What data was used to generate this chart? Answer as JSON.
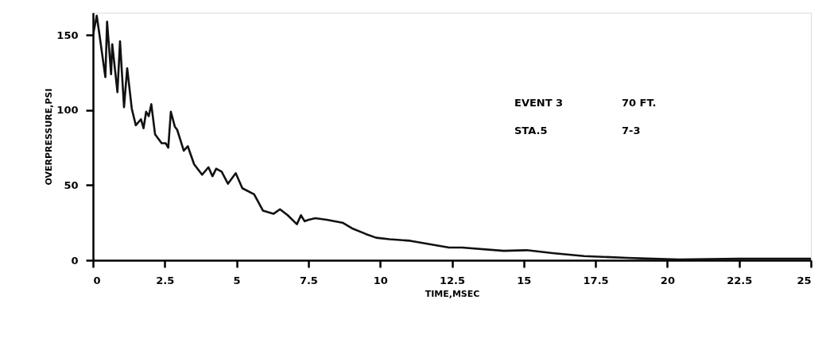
{
  "chart_data": {
    "type": "line",
    "xlabel": "TIME,MSEC",
    "ylabel": "OVERPRESSURE,PSI",
    "annotations": [
      "EVENT 3",
      "70 FT.",
      "STA.5",
      "7-3"
    ],
    "series": [
      {
        "color": "#111111",
        "x": [
          0,
          0.13,
          0.22,
          0.43,
          0.49,
          0.63,
          0.67,
          0.85,
          0.94,
          1.08,
          1.19,
          1.35,
          1.49,
          1.67,
          1.76,
          1.85,
          1.94,
          2.03,
          2.16,
          2.39,
          2.53,
          2.62,
          2.71,
          2.85,
          2.93,
          3.16,
          3.3,
          3.52,
          3.8,
          4.02,
          4.16,
          4.29,
          4.48,
          4.7,
          4.97,
          5.2,
          5.61,
          5.92,
          6.29,
          6.51,
          6.78,
          7.1,
          7.24,
          7.37,
          7.51,
          7.74,
          8.14,
          8.69,
          9.05,
          9.5,
          9.86,
          10.32,
          11.04,
          12.4,
          12.85,
          14.3,
          15.1,
          16.0,
          17.1,
          18.6,
          19.5,
          20.4,
          22.5,
          25
        ],
        "values": [
          150,
          163,
          151,
          122,
          159,
          124,
          144,
          112,
          146,
          102,
          128,
          101,
          90,
          94,
          88,
          99,
          96,
          104,
          84,
          78,
          78,
          75,
          99,
          89,
          87,
          73,
          76,
          64,
          57,
          62,
          56,
          61,
          59,
          51,
          58,
          48,
          44,
          33,
          31,
          34,
          30,
          24,
          30,
          26,
          27,
          28,
          27,
          25,
          21,
          17.5,
          15,
          14,
          13,
          8.5,
          8.5,
          6.3,
          6.7,
          4.8,
          2.8,
          1.6,
          1,
          0.5,
          1,
          1
        ]
      }
    ],
    "xlim": [
      0,
      25
    ],
    "xticks": [
      0,
      2.5,
      5,
      7.5,
      10,
      12.5,
      15,
      17.5,
      20,
      22.5,
      25
    ],
    "ylim": [
      0,
      165
    ],
    "yticks": [
      0,
      50,
      100,
      150
    ],
    "grid": false,
    "marker": "none",
    "line_style": "solid"
  }
}
